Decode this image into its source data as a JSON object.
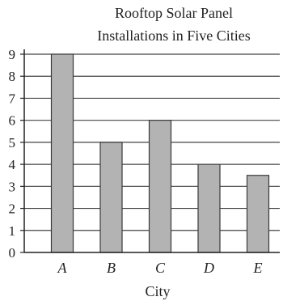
{
  "chart_data": {
    "type": "bar",
    "title_lines": [
      "Rooftop Solar Panel",
      "Installations in Five Cities"
    ],
    "xlabel": "City",
    "ylabel": "",
    "categories": [
      "A",
      "B",
      "C",
      "D",
      "E"
    ],
    "values": [
      9,
      5,
      6,
      4,
      3.5
    ],
    "ylim": [
      0,
      9
    ],
    "yticks": [
      "0",
      "1",
      "2",
      "3",
      "4",
      "5",
      "6",
      "7",
      "8",
      "9"
    ],
    "grid": true,
    "legend": "none",
    "colors": {
      "bar_fill": "#b3b3b3",
      "bar_stroke": "#3a3a3a",
      "grid": "#444444",
      "axis": "#222222",
      "text": "#222222"
    }
  }
}
